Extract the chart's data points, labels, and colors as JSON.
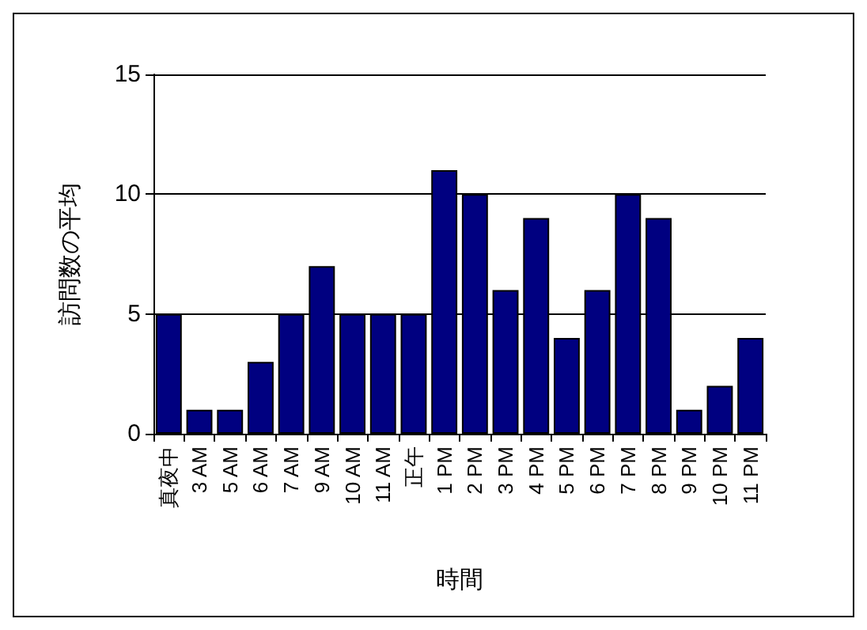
{
  "chart_data": {
    "type": "bar",
    "xlabel": "時間",
    "ylabel": "訪問数の平均",
    "categories": [
      "真夜中",
      "3 AM",
      "5 AM",
      "6 AM",
      "7 AM",
      "9 AM",
      "10 AM",
      "11 AM",
      "正午",
      "1 PM",
      "2 PM",
      "3 PM",
      "4 PM",
      "5 PM",
      "6 PM",
      "7 PM",
      "8 PM",
      "9 PM",
      "10 PM",
      "11 PM"
    ],
    "values": [
      5,
      1,
      1,
      3,
      5,
      7,
      5,
      5,
      5,
      11,
      10,
      6,
      9,
      4,
      6,
      10,
      9,
      1,
      2,
      4
    ],
    "color": "#000080",
    "ylim": [
      0,
      15
    ],
    "yticks": [
      0,
      5,
      10,
      15
    ],
    "grid": "y"
  }
}
